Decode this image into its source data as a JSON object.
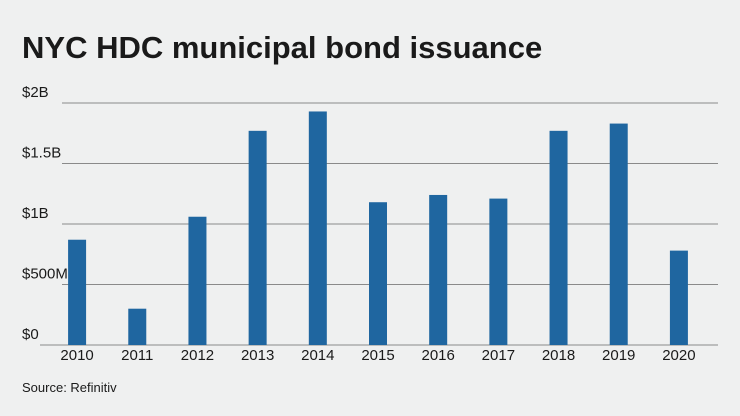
{
  "chart_data": {
    "type": "bar",
    "title": "NYC HDC municipal bond issuance",
    "categories": [
      "2010",
      "2011",
      "2012",
      "2013",
      "2014",
      "2015",
      "2016",
      "2017",
      "2018",
      "2019",
      "2020"
    ],
    "values": [
      870000000,
      300000000,
      1060000000,
      1770000000,
      1930000000,
      1180000000,
      1240000000,
      1210000000,
      1770000000,
      1830000000,
      780000000
    ],
    "color": "#1f66a0",
    "ylim": [
      0,
      2000000000
    ],
    "yticks": [
      {
        "value": 0,
        "label": "$0"
      },
      {
        "value": 500000000,
        "label": "$500M"
      },
      {
        "value": 1000000000,
        "label": "$1B"
      },
      {
        "value": 1500000000,
        "label": "$1.5B"
      },
      {
        "value": 2000000000,
        "label": "$2B"
      }
    ],
    "grid": true,
    "source": "Source: Refinitiv"
  }
}
